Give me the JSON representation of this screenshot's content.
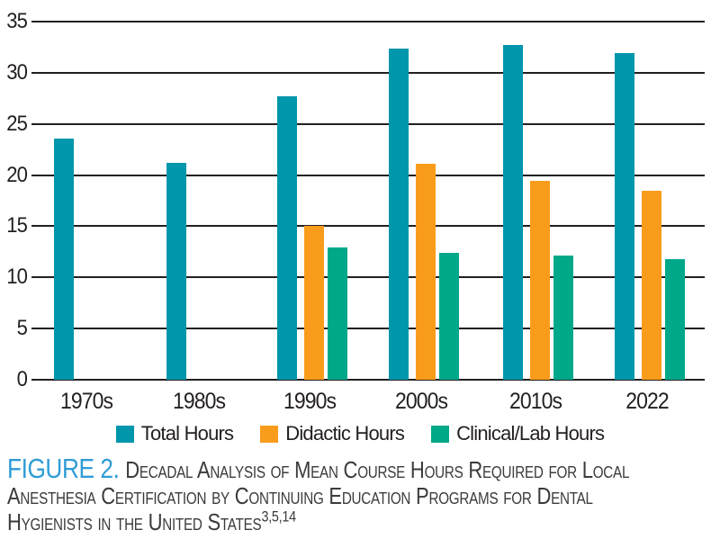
{
  "chart_data": {
    "type": "bar",
    "title": "",
    "xlabel": "",
    "ylabel": "",
    "categories": [
      "1970s",
      "1980s",
      "1990s",
      "2000s",
      "2010s",
      "2022"
    ],
    "series": [
      {
        "name": "Total Hours",
        "color": "#0096ac",
        "values": [
          23.6,
          21.2,
          27.7,
          32.4,
          32.7,
          31.9
        ]
      },
      {
        "name": "Didactic Hours",
        "color": "#f99c1c",
        "values": [
          null,
          null,
          15.0,
          21.1,
          19.4,
          18.5
        ]
      },
      {
        "name": "Clinical/Lab Hours",
        "color": "#00a88a",
        "values": [
          null,
          null,
          12.9,
          12.4,
          12.1,
          11.8
        ]
      }
    ],
    "ylim": [
      0,
      35
    ],
    "ytick_step": 5,
    "yticks": [
      0,
      5,
      10,
      15,
      20,
      25,
      30,
      35
    ],
    "grid": true,
    "gridline_color": "#231f20",
    "legend_position": "bottom"
  },
  "caption": {
    "figure_label": "FIGURE 2.",
    "lines": [
      "Decadal Analysis of Mean Course Hours Required for Local",
      "Anesthesia Certification by Continuing Education Programs for Dental",
      "Hygienists in the United States"
    ],
    "superscript": "3,5,14",
    "accent_color": "#2f9cd6"
  }
}
